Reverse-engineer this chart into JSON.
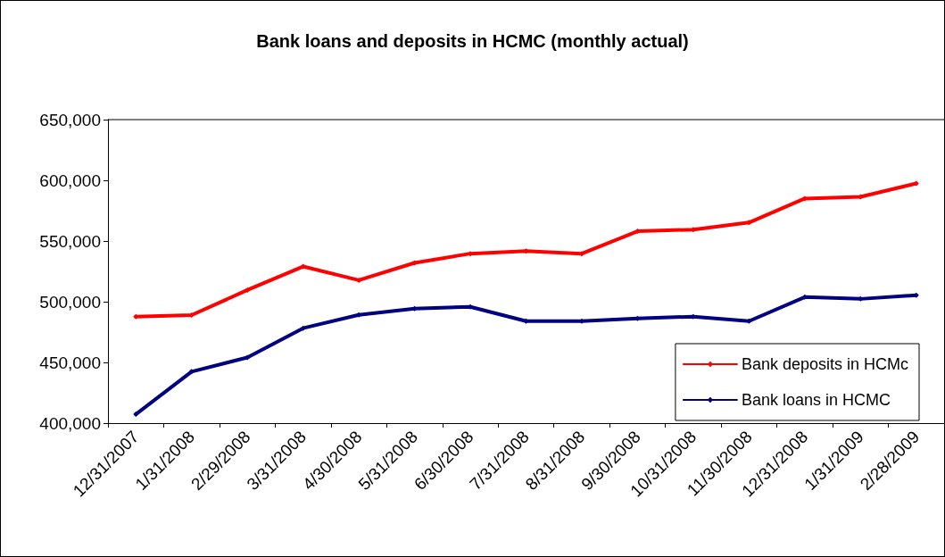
{
  "chart_data": {
    "type": "line",
    "title": "Bank loans and deposits in HCMC (monthly actual)",
    "categories": [
      "12/31/2007",
      "1/31/2008",
      "2/29/2008",
      "3/31/2008",
      "4/30/2008",
      "5/31/2008",
      "6/30/2008",
      "7/31/2008",
      "8/31/2008",
      "9/30/2008",
      "10/31/2008",
      "11/30/2008",
      "12/31/2008",
      "1/31/2009",
      "2/28/2009"
    ],
    "series": [
      {
        "name": "Bank deposits in HCMc",
        "color": "#ff0000",
        "values": [
          487700,
          489000,
          509600,
          529000,
          517700,
          532000,
          539600,
          541800,
          539600,
          558000,
          559400,
          565200,
          585000,
          586400,
          597400
        ]
      },
      {
        "name": "Bank loans in HCMC",
        "color": "#000080",
        "values": [
          407300,
          442400,
          454000,
          478200,
          489200,
          494300,
          495800,
          484000,
          484000,
          486300,
          487700,
          484000,
          503800,
          502300,
          505300
        ]
      }
    ],
    "ylim": [
      400000,
      650000
    ],
    "yticks": [
      {
        "value": 400000,
        "label": "400,000"
      },
      {
        "value": 450000,
        "label": "450,000"
      },
      {
        "value": 500000,
        "label": "500,000"
      },
      {
        "value": 550000,
        "label": "550,000"
      },
      {
        "value": 600000,
        "label": "600,000"
      },
      {
        "value": 650000,
        "label": "650,000"
      }
    ],
    "grid": false,
    "legend": "bottom right",
    "marker": "diamond",
    "line_style": "solid"
  }
}
